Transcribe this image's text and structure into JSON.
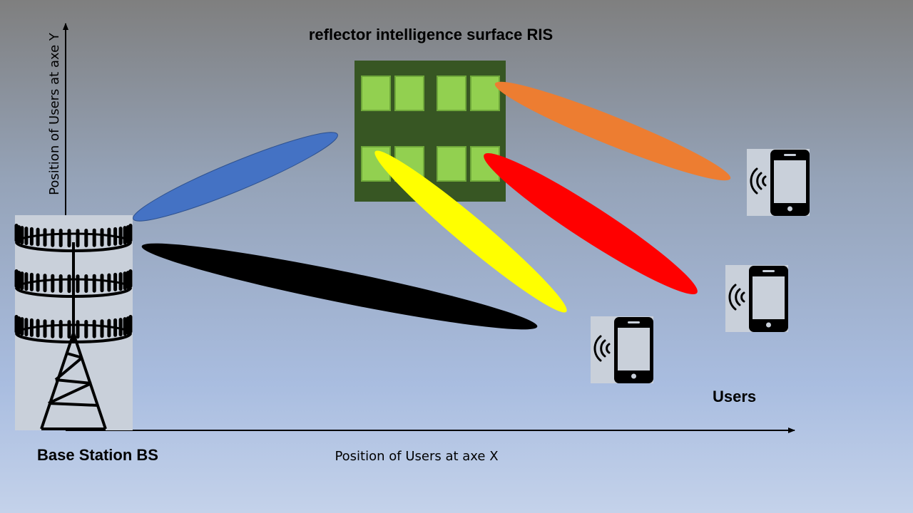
{
  "labels": {
    "ris_title": "reflector intelligence surface RIS",
    "base_station": "Base Station BS",
    "users": "Users",
    "x_axis": "Position of Users at axe X",
    "y_axis": "Position of Users at axe Y"
  },
  "colors": {
    "beam_bs_to_ris": "#4472c4",
    "beam_bs_to_user": "#000000",
    "beam_ris_to_user1": "#ffff00",
    "beam_ris_to_user2": "#ff0000",
    "beam_ris_to_user3": "#ed7d31",
    "ris_panel": "#375623",
    "ris_element": "#92d050"
  },
  "icons": {
    "base_station": "antenna-tower-icon",
    "user_device": "smartphone-signal-icon"
  }
}
